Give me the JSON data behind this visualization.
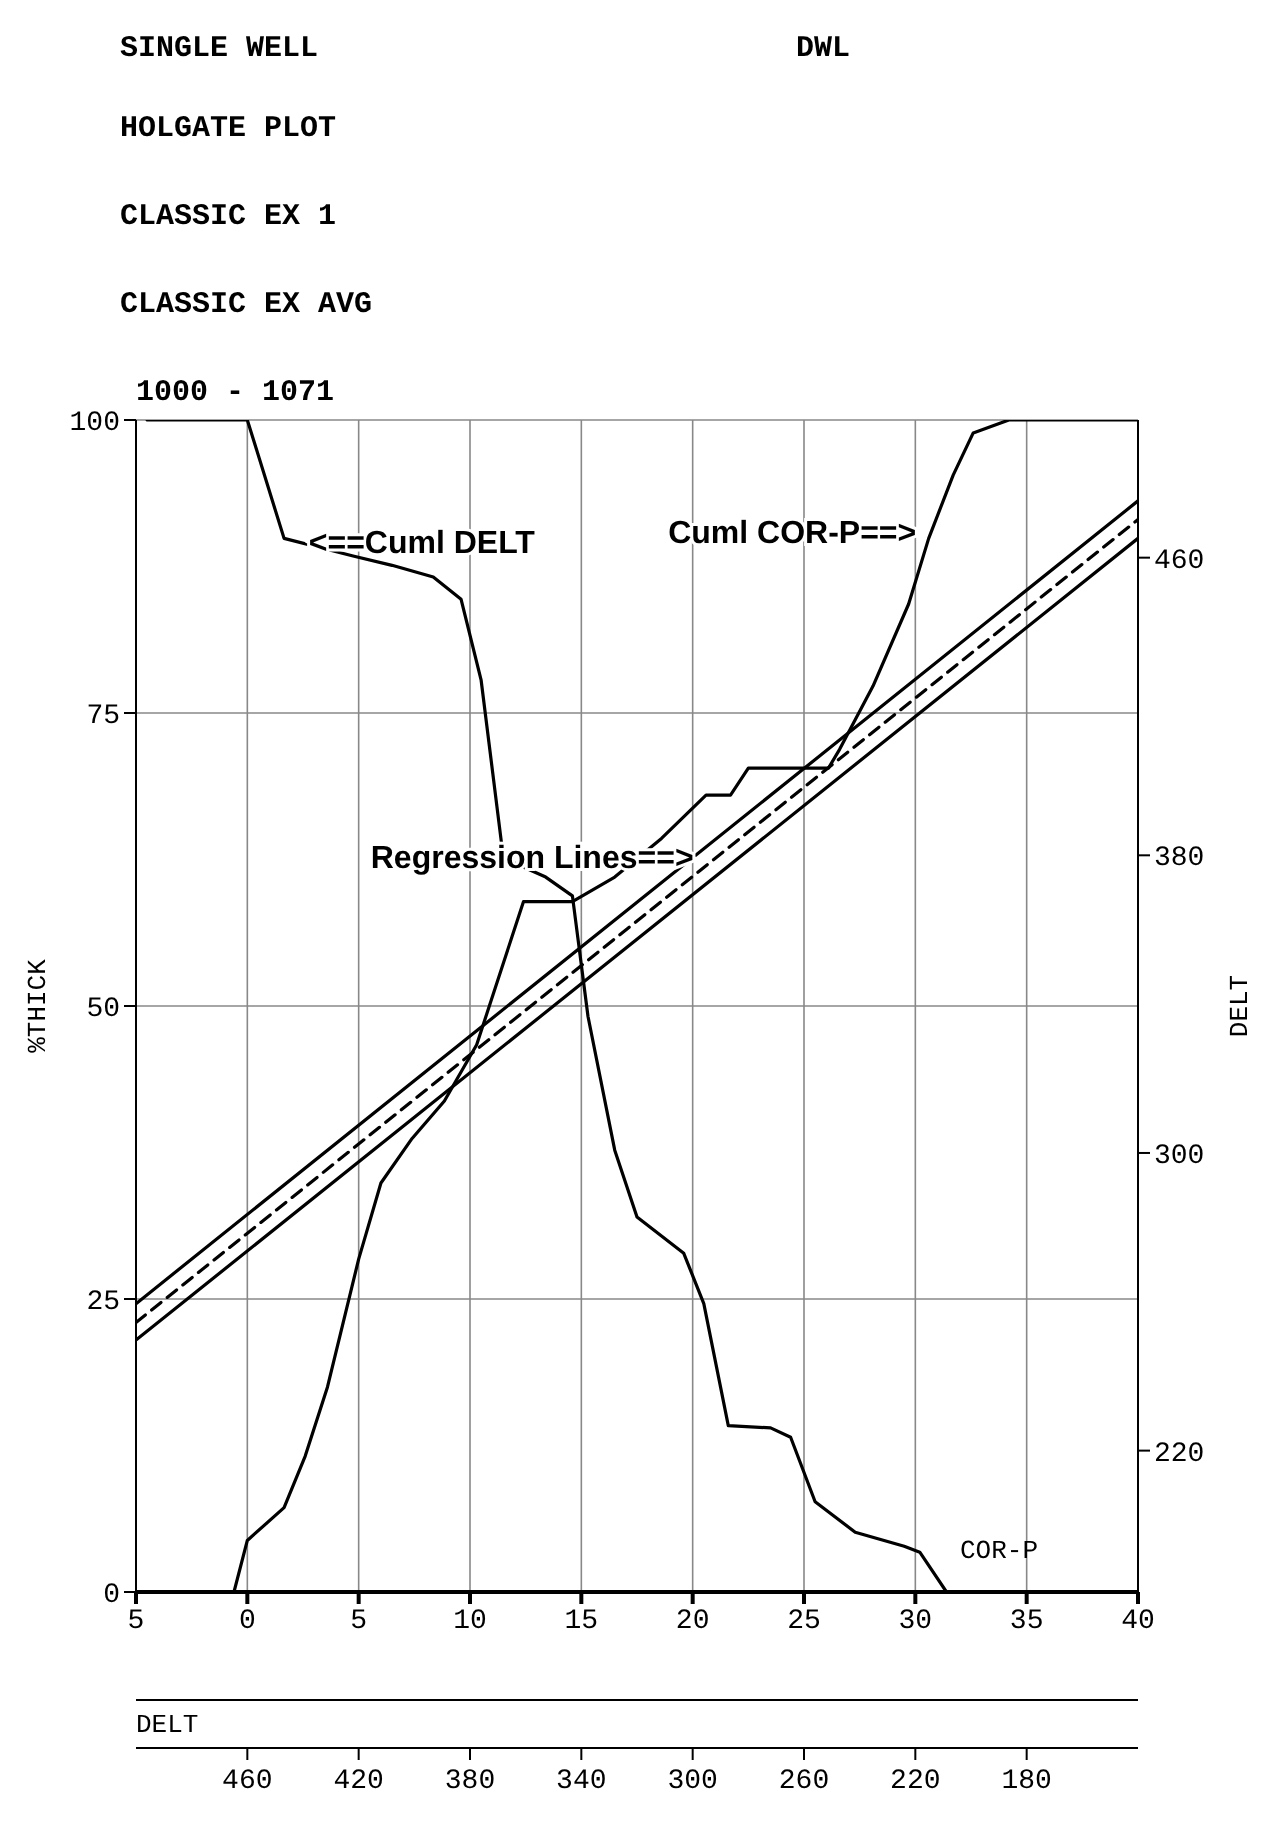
{
  "chart_data": {
    "type": "line",
    "title": "SINGLE WELL",
    "subtitle": "HOLGATE PLOT",
    "annotations": [
      "DWL",
      "CLASSIC EX 1",
      "CLASSIC EX AVG",
      "1000 - 1071",
      {
        "text": "<==Cuml DELT",
        "x": 2.4,
        "y": 89.5
      },
      {
        "text": "Cuml COR-P==>",
        "x": 30.4,
        "y": 90.4
      },
      {
        "text": "Regression Lines==>",
        "x": 20.4,
        "y": 62.6
      }
    ],
    "xlabel": "COR-P",
    "ylabel": "%THICK",
    "y2label": "DELT",
    "x2label": "DELT",
    "xlim": [
      -5,
      40
    ],
    "xticks": [
      {
        "value": -5,
        "label": "5"
      },
      0,
      5,
      10,
      15,
      20,
      25,
      30,
      35,
      40
    ],
    "x2lim": [
      500,
      140
    ],
    "x2ticks": [
      460,
      420,
      380,
      340,
      300,
      260,
      220,
      180
    ],
    "ylim": [
      0,
      100
    ],
    "yticks": [
      0,
      25,
      50,
      75,
      100
    ],
    "y2lim": [
      182,
      497
    ],
    "y2ticks": [
      220,
      300,
      380,
      460
    ],
    "grid": true,
    "legend": false,
    "marker": "none",
    "series": [
      {
        "color": "#000000",
        "x": [
          -4.5,
          0,
          1.65,
          4.75,
          6.5,
          8.35,
          9.6,
          10.5,
          11.5,
          13.4,
          14.6,
          15.3,
          16.5,
          17.5,
          19.6,
          20.5,
          21.6,
          23.5,
          24.4,
          25.5,
          27.3,
          29.5,
          30.2,
          31.4
        ],
        "values": [
          100,
          100,
          89.9,
          88.4,
          87.6,
          86.6,
          84.7,
          77.8,
          62.6,
          61,
          59.4,
          49.1,
          37.7,
          32,
          28.9,
          24.6,
          14.2,
          14,
          13.2,
          7.7,
          5.1,
          3.9,
          3.4,
          0
        ]
      },
      {
        "color": "#000000",
        "x": [
          -0.6,
          0,
          1.65,
          2.6,
          3.6,
          5,
          6,
          7.4,
          8.85,
          10.3,
          12.4,
          14.6,
          16.5,
          18.6,
          20.6,
          21.7,
          22.5,
          26.1,
          26.6,
          28.1,
          29.7,
          30.6,
          31.7,
          32.6,
          34.2,
          40
        ],
        "values": [
          0,
          4.4,
          7.2,
          11.6,
          17.5,
          28.4,
          34.9,
          38.7,
          41.9,
          46.7,
          58.9,
          58.9,
          61,
          64.3,
          68,
          68,
          70.3,
          70.3,
          71.9,
          77.3,
          84.3,
          89.9,
          95.3,
          98.9,
          100,
          100
        ]
      },
      {
        "color": "#000000",
        "x": [
          -5,
          40
        ],
        "values": [
          24.6,
          93.1
        ]
      },
      {
        "color": "#000000",
        "x": [
          -5,
          40
        ],
        "values": [
          23,
          91.5
        ],
        "line_style": "dashed"
      },
      {
        "color": "#000000",
        "x": [
          -5,
          40
        ],
        "values": [
          21.5,
          89.9
        ]
      }
    ]
  }
}
